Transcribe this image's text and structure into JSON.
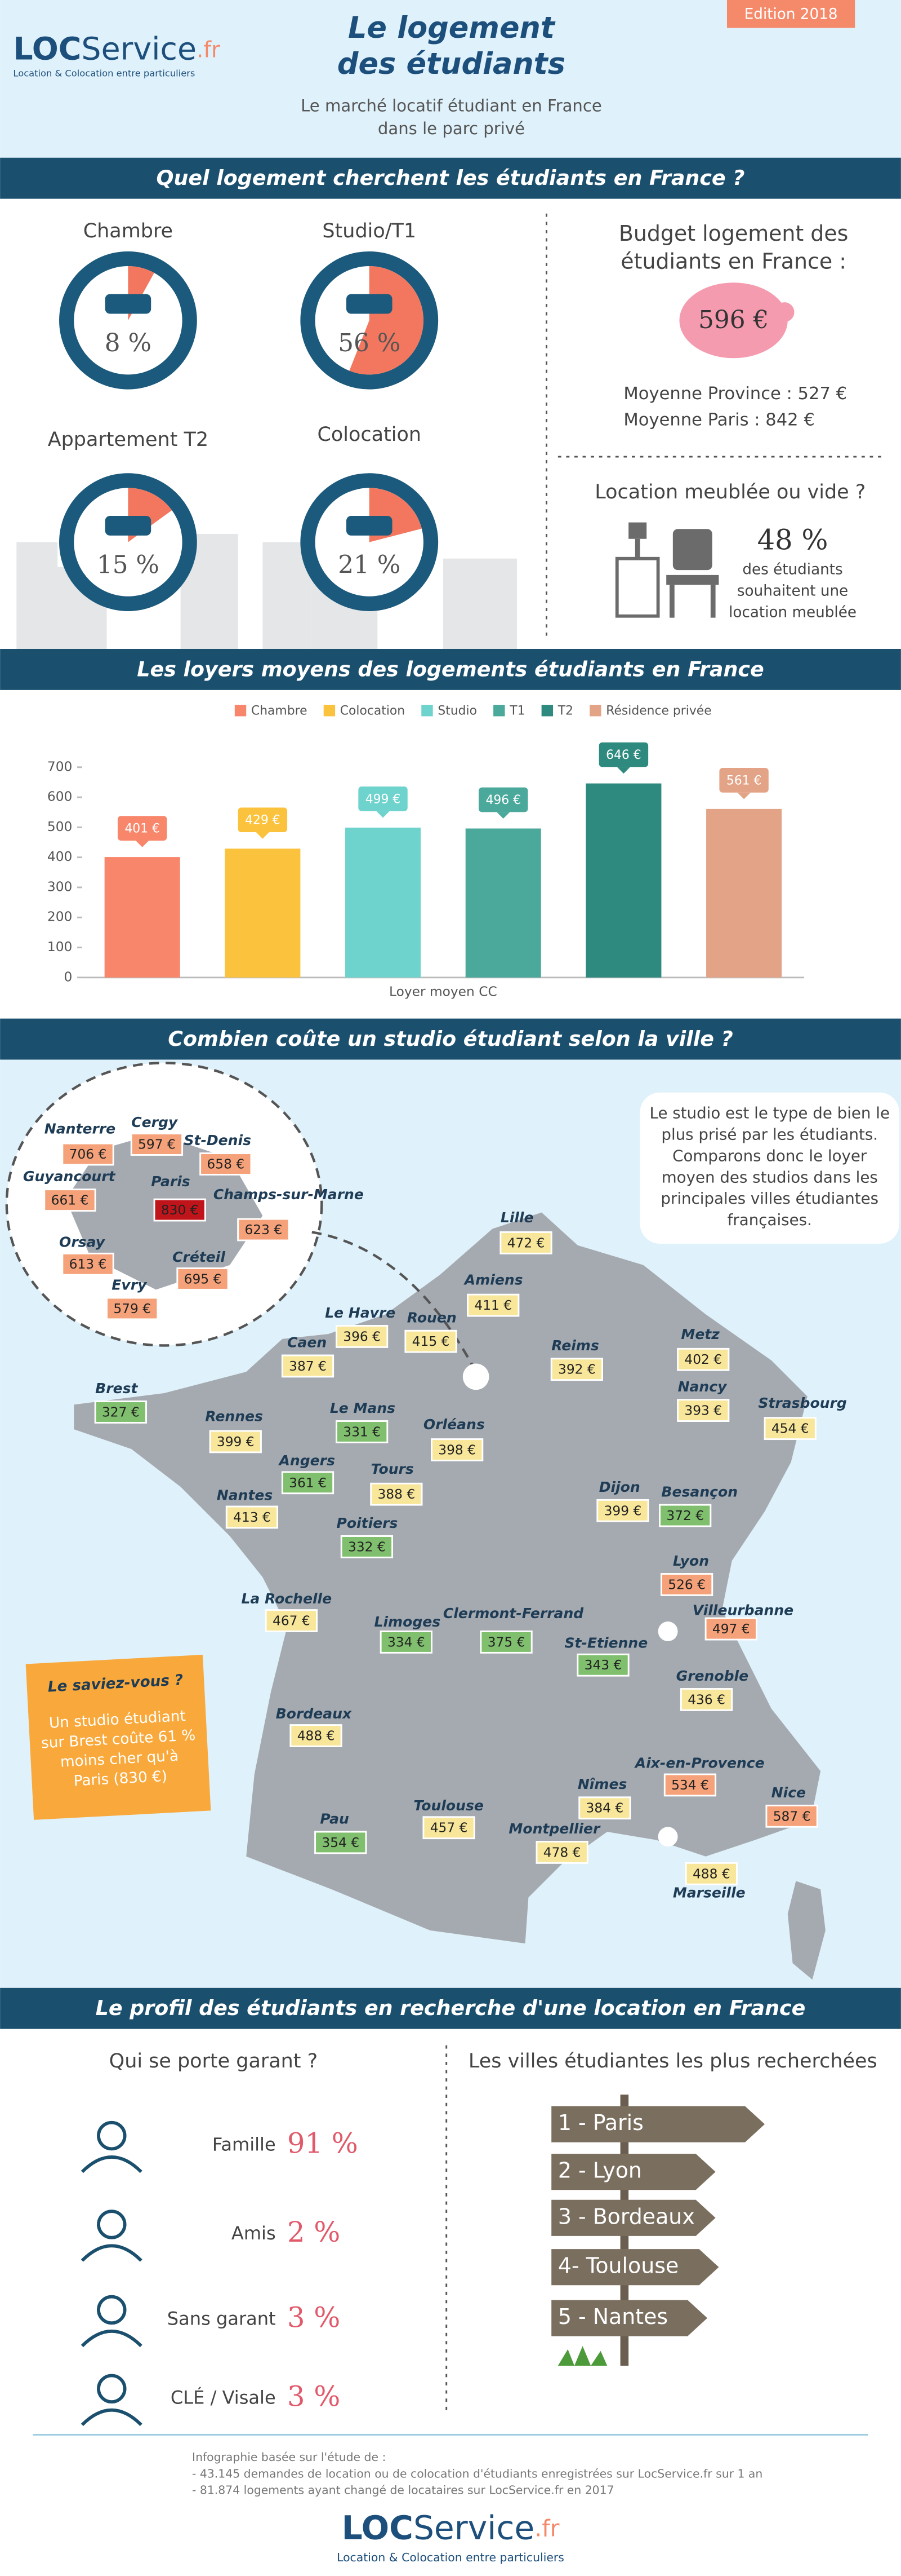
{
  "header": {
    "logo_loc": "LOC",
    "logo_service": "Service",
    "logo_fr": ".fr",
    "logo_tagline": "Location & Colocation entre particuliers",
    "title_lines": [
      "Le logement",
      "des étudiants"
    ],
    "edition": "Edition 2018",
    "subtitle_lines": [
      "Le marché locatif étudiant en France",
      "dans le parc privé"
    ]
  },
  "section_titles": [
    "Quel logement cherchent les étudiants en France ?",
    "Les loyers moyens des logements étudiants en France",
    "Combien coûte un studio étudiant selon la ville ?",
    "Le profil des étudiants en recherche d'une location en France"
  ],
  "chart_data": [
    {
      "type": "pie",
      "categories": [
        "Chambre",
        "Studio/T1",
        "Appartement T2",
        "Colocation"
      ],
      "values": [
        8,
        56,
        15,
        21
      ],
      "value_labels": [
        "8 %",
        "56 %",
        "15 %",
        "21 %"
      ],
      "color": "#f2775e",
      "ring_color": "#1b5a7c"
    },
    {
      "type": "bar",
      "categories": [
        "Chambre",
        "Colocation",
        "Studio",
        "T1",
        "T2",
        "Résidence privée"
      ],
      "values": [
        401,
        429,
        499,
        496,
        646,
        561
      ],
      "value_labels": [
        "401 €",
        "429 €",
        "499 €",
        "496 €",
        "646 €",
        "561 €"
      ],
      "colors": [
        "#f7866b",
        "#fbc33d",
        "#6fd3cd",
        "#4ba99c",
        "#2e8a7e",
        "#e3a386"
      ],
      "ylim": [
        0,
        700
      ],
      "yticks": [
        0,
        100,
        200,
        300,
        400,
        500,
        600,
        700
      ],
      "x_label": "Loyer moyen CC",
      "legend": "top"
    }
  ],
  "budget": {
    "title_lines": [
      "Budget logement des",
      "étudiants en France :"
    ],
    "amount": "596 €",
    "lines": [
      "Moyenne Province : 527 €",
      "Moyenne Paris : 842 €"
    ]
  },
  "furnished": {
    "title": "Location meublée ou vide ?",
    "percent": "48 %",
    "lines": [
      "des étudiants",
      "souhaitent une",
      "location meublée"
    ]
  },
  "map": {
    "intro_lines": [
      "Le studio est le type de bien le",
      "plus prisé par les étudiants.",
      "Comparons donc le loyer",
      "moyen des studios dans les",
      "principales villes étudiantes",
      "françaises."
    ],
    "fact_title": "Le saviez-vous ?",
    "fact_lines": [
      "Un studio étudiant",
      "sur Brest coûte 61 %",
      "moins cher qu'à",
      "Paris (830 €)"
    ],
    "cities": [
      {
        "name": "Nanterre",
        "price": "706 €",
        "color": "#f5a27a"
      },
      {
        "name": "Cergy",
        "price": "597 €",
        "color": "#f5a27a"
      },
      {
        "name": "St-Denis",
        "price": "658 €",
        "color": "#f5a27a"
      },
      {
        "name": "Guyancourt",
        "price": "661 €",
        "color": "#f5a27a"
      },
      {
        "name": "Paris",
        "price": "830 €",
        "color": "#c0141b"
      },
      {
        "name": "Champs-sur-Marne",
        "price": "623 €",
        "color": "#f5a27a"
      },
      {
        "name": "Orsay",
        "price": "613 €",
        "color": "#f5a27a"
      },
      {
        "name": "Créteil",
        "price": "695 €",
        "color": "#f5a27a"
      },
      {
        "name": "Evry",
        "price": "579 €",
        "color": "#f5a27a"
      },
      {
        "name": "Lille",
        "price": "472 €",
        "color": "#f8e79a"
      },
      {
        "name": "Amiens",
        "price": "411 €",
        "color": "#f8e79a"
      },
      {
        "name": "Le Havre",
        "price": "396 €",
        "color": "#f8e79a"
      },
      {
        "name": "Rouen",
        "price": "415 €",
        "color": "#f8e79a"
      },
      {
        "name": "Caen",
        "price": "387 €",
        "color": "#f8e79a"
      },
      {
        "name": "Reims",
        "price": "392 €",
        "color": "#f8e79a"
      },
      {
        "name": "Metz",
        "price": "402 €",
        "color": "#f8e79a"
      },
      {
        "name": "Nancy",
        "price": "393 €",
        "color": "#f8e79a"
      },
      {
        "name": "Strasbourg",
        "price": "454 €",
        "color": "#f8e79a"
      },
      {
        "name": "Brest",
        "price": "327 €",
        "color": "#7fbf6e"
      },
      {
        "name": "Rennes",
        "price": "399 €",
        "color": "#f8e79a"
      },
      {
        "name": "Le Mans",
        "price": "331 €",
        "color": "#7fbf6e"
      },
      {
        "name": "Orléans",
        "price": "398 €",
        "color": "#f8e79a"
      },
      {
        "name": "Angers",
        "price": "361 €",
        "color": "#7fbf6e"
      },
      {
        "name": "Tours",
        "price": "388 €",
        "color": "#f8e79a"
      },
      {
        "name": "Nantes",
        "price": "413 €",
        "color": "#f8e79a"
      },
      {
        "name": "Poitiers",
        "price": "332 €",
        "color": "#7fbf6e"
      },
      {
        "name": "Dijon",
        "price": "399 €",
        "color": "#f8e79a"
      },
      {
        "name": "Besançon",
        "price": "372 €",
        "color": "#7fbf6e"
      },
      {
        "name": "Lyon",
        "price": "526 €",
        "color": "#f5a27a"
      },
      {
        "name": "Villeurbanne",
        "price": "497 €",
        "color": "#f5a27a"
      },
      {
        "name": "La Rochelle",
        "price": "467 €",
        "color": "#f8e79a"
      },
      {
        "name": "Limoges",
        "price": "334 €",
        "color": "#7fbf6e"
      },
      {
        "name": "Clermont-Ferrand",
        "price": "375 €",
        "color": "#7fbf6e"
      },
      {
        "name": "St-Etienne",
        "price": "343 €",
        "color": "#7fbf6e"
      },
      {
        "name": "Grenoble",
        "price": "436 €",
        "color": "#f8e79a"
      },
      {
        "name": "Bordeaux",
        "price": "488 €",
        "color": "#f8e79a"
      },
      {
        "name": "Aix-en-Provence",
        "price": "534 €",
        "color": "#f5a27a"
      },
      {
        "name": "Nice",
        "price": "587 €",
        "color": "#f5a27a"
      },
      {
        "name": "Nîmes",
        "price": "384 €",
        "color": "#f8e79a"
      },
      {
        "name": "Montpellier",
        "price": "478 €",
        "color": "#f8e79a"
      },
      {
        "name": "Toulouse",
        "price": "457 €",
        "color": "#f8e79a"
      },
      {
        "name": "Pau",
        "price": "354 €",
        "color": "#7fbf6e"
      },
      {
        "name": "Marseille",
        "price": "488 €",
        "color": "#f8e79a"
      }
    ]
  },
  "guarantor": {
    "title": "Qui se porte garant ?",
    "rows": [
      {
        "label": "Famille",
        "value": "91 %"
      },
      {
        "label": "Amis",
        "value": "2 %"
      },
      {
        "label": "Sans garant",
        "value": "3 %"
      },
      {
        "label": "CLÉ / Visale",
        "value": "3 %"
      }
    ]
  },
  "top_cities": {
    "title": "Les villes étudiantes les plus recherchées",
    "items": [
      "1 - Paris",
      "2 - Lyon",
      "3 - Bordeaux",
      "4- Toulouse",
      "5 - Nantes"
    ]
  },
  "footer": {
    "source_lines": [
      "Infographie basée sur l'étude de :",
      "- 43.145 demandes de location ou de colocation d'étudiants enregistrées sur LocService.fr sur 1 an",
      "- 81.874 logements ayant changé de locataires sur LocService.fr en 2017"
    ],
    "logo_loc": "LOC",
    "logo_service": "Service",
    "logo_fr": ".fr",
    "logo_tagline": "Location & Colocation entre particuliers"
  }
}
